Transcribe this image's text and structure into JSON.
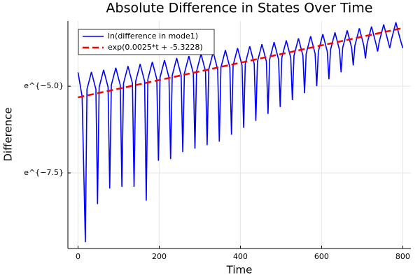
{
  "chart_data": {
    "type": "line",
    "title": "Absolute Difference in States Over Time",
    "x_label": "Time",
    "y_label": "Difference",
    "xlim": [
      -25,
      820
    ],
    "ylim": [
      -9.68,
      -3.12
    ],
    "xticks": [
      0,
      200,
      400,
      600,
      800
    ],
    "yticks": [
      {
        "value": -5.0,
        "label": "e^{−5.0}"
      },
      {
        "value": -7.5,
        "label": "e^{−7.5}"
      }
    ],
    "grid": true,
    "legend": "top-left",
    "series": [
      {
        "name": "ln(difference in mode1)",
        "color": "#0000ff",
        "dash": false,
        "x": [
          0,
          10,
          18,
          22,
          33,
          44,
          48,
          52,
          63,
          74,
          78,
          82,
          93,
          104,
          108,
          112,
          123,
          134,
          138,
          142,
          153,
          164,
          168,
          172,
          183,
          194,
          198,
          202,
          213,
          224,
          228,
          232,
          243,
          254,
          258,
          262,
          273,
          284,
          288,
          292,
          303,
          314,
          318,
          322,
          333,
          344,
          348,
          352,
          363,
          374,
          378,
          382,
          393,
          404,
          408,
          412,
          423,
          434,
          438,
          442,
          453,
          464,
          468,
          472,
          483,
          494,
          498,
          502,
          513,
          524,
          528,
          532,
          543,
          554,
          558,
          562,
          573,
          584,
          588,
          592,
          603,
          614,
          618,
          622,
          633,
          644,
          648,
          652,
          663,
          674,
          678,
          682,
          693,
          704,
          708,
          712,
          723,
          734,
          738,
          742,
          753,
          764,
          768,
          772,
          783,
          794,
          800
        ],
        "values": [
          -4.6,
          -5.3,
          -9.5,
          -5.09,
          -4.59,
          -5.09,
          -8.4,
          -5.03,
          -4.53,
          -5.03,
          -7.95,
          -4.97,
          -4.47,
          -4.97,
          -7.9,
          -4.92,
          -4.42,
          -4.92,
          -7.9,
          -4.86,
          -4.36,
          -4.86,
          -8.3,
          -4.8,
          -4.3,
          -4.8,
          -7.15,
          -4.75,
          -4.25,
          -4.75,
          -7.1,
          -4.69,
          -4.19,
          -4.69,
          -6.9,
          -4.63,
          -4.13,
          -4.63,
          -6.8,
          -4.57,
          -4.07,
          -4.57,
          -6.7,
          -4.52,
          -4.02,
          -4.52,
          -6.6,
          -4.46,
          -3.96,
          -4.46,
          -6.4,
          -4.4,
          -3.9,
          -4.4,
          -6.2,
          -4.35,
          -3.85,
          -4.35,
          -6.0,
          -4.29,
          -3.79,
          -4.29,
          -5.8,
          -4.23,
          -3.73,
          -4.23,
          -5.6,
          -4.18,
          -3.68,
          -4.18,
          -5.4,
          -4.12,
          -3.62,
          -4.12,
          -5.2,
          -4.06,
          -3.56,
          -4.06,
          -5.0,
          -4.0,
          -3.5,
          -4.0,
          -4.8,
          -3.95,
          -3.45,
          -3.95,
          -4.6,
          -3.89,
          -3.39,
          -3.89,
          -4.4,
          -3.83,
          -3.33,
          -3.83,
          -4.2,
          -3.78,
          -3.28,
          -3.78,
          -4.0,
          -3.72,
          -3.22,
          -3.72,
          -3.9,
          -3.66,
          -3.16,
          -3.66,
          -3.9
        ]
      },
      {
        "name": "exp(0.0025*t + -5.3228)",
        "color": "#ff0000",
        "dash": true,
        "x": [
          0,
          800
        ],
        "values": [
          -5.3228,
          -3.3228
        ]
      }
    ]
  }
}
